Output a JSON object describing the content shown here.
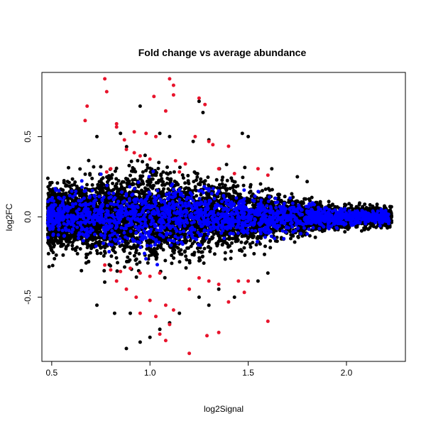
{
  "chart_data": {
    "type": "scatter",
    "title": "Fold change vs average abundance",
    "xlabel": "log2Signal",
    "ylabel": "log2FC",
    "xlim": [
      0.45,
      2.3
    ],
    "ylim": [
      -0.9,
      0.9
    ],
    "x_ticks": [
      0.5,
      1.0,
      1.5,
      2.0
    ],
    "x_tick_labels": [
      "0.5",
      "1.0",
      "1.5",
      "2.0"
    ],
    "y_ticks": [
      -0.5,
      0.0,
      0.5
    ],
    "y_tick_labels": [
      "-0.5",
      "0.0",
      "0.5"
    ],
    "grid": false,
    "legend": "none",
    "colors": {
      "black": "#000000",
      "blue": "#0000ff",
      "red": "#e8142c"
    },
    "series": [
      {
        "color": "black",
        "note_points": "dense cloud of thousands of points; outliers listed",
        "points": [
          [
            0.95,
            0.69
          ],
          [
            1.25,
            0.72
          ],
          [
            1.27,
            0.65
          ],
          [
            1.47,
            0.52
          ],
          [
            1.5,
            0.5
          ],
          [
            0.85,
            0.52
          ],
          [
            1.05,
            0.52
          ],
          [
            1.1,
            0.5
          ],
          [
            0.73,
            0.5
          ],
          [
            1.3,
            0.48
          ],
          [
            1.22,
            0.47
          ],
          [
            1.62,
            0.3
          ],
          [
            1.75,
            0.25
          ],
          [
            1.8,
            0.22
          ],
          [
            0.88,
            -0.82
          ],
          [
            0.95,
            -0.78
          ],
          [
            1.0,
            -0.75
          ],
          [
            1.05,
            -0.7
          ],
          [
            1.1,
            -0.66
          ],
          [
            1.15,
            -0.6
          ],
          [
            0.73,
            -0.55
          ],
          [
            0.82,
            -0.6
          ],
          [
            0.9,
            -0.6
          ],
          [
            1.3,
            -0.55
          ],
          [
            1.43,
            -0.5
          ],
          [
            1.6,
            -0.35
          ],
          [
            1.55,
            -0.4
          ],
          [
            1.35,
            -0.45
          ],
          [
            1.25,
            -0.5
          ]
        ]
      },
      {
        "color": "blue",
        "note_points": "dense band of points around log2FC 0 across the full signal range"
      },
      {
        "color": "red",
        "points": [
          [
            0.77,
            0.86
          ],
          [
            1.1,
            0.86
          ],
          [
            0.78,
            0.78
          ],
          [
            1.12,
            0.82
          ],
          [
            1.12,
            0.76
          ],
          [
            1.02,
            0.75
          ],
          [
            1.25,
            0.74
          ],
          [
            1.28,
            0.7
          ],
          [
            0.68,
            0.69
          ],
          [
            1.08,
            0.66
          ],
          [
            0.67,
            0.6
          ],
          [
            0.83,
            0.58
          ],
          [
            0.83,
            0.56
          ],
          [
            0.92,
            0.53
          ],
          [
            0.98,
            0.52
          ],
          [
            1.03,
            0.5
          ],
          [
            1.23,
            0.5
          ],
          [
            1.3,
            0.47
          ],
          [
            1.32,
            0.45
          ],
          [
            1.4,
            0.44
          ],
          [
            0.87,
            0.48
          ],
          [
            0.88,
            0.42
          ],
          [
            0.92,
            0.4
          ],
          [
            0.95,
            0.38
          ],
          [
            1.0,
            0.36
          ],
          [
            1.13,
            0.35
          ],
          [
            1.18,
            0.33
          ],
          [
            1.35,
            0.3
          ],
          [
            1.43,
            0.27
          ],
          [
            1.55,
            0.3
          ],
          [
            0.8,
            0.3
          ],
          [
            0.78,
            0.28
          ],
          [
            1.6,
            0.26
          ],
          [
            1.15,
            0.28
          ],
          [
            0.77,
            -0.3
          ],
          [
            0.8,
            -0.33
          ],
          [
            0.85,
            -0.34
          ],
          [
            0.9,
            -0.32
          ],
          [
            0.95,
            -0.35
          ],
          [
            1.0,
            -0.37
          ],
          [
            1.05,
            -0.35
          ],
          [
            0.83,
            -0.4
          ],
          [
            0.88,
            -0.45
          ],
          [
            0.93,
            -0.5
          ],
          [
            1.0,
            -0.52
          ],
          [
            1.08,
            -0.55
          ],
          [
            1.12,
            -0.58
          ],
          [
            0.95,
            -0.6
          ],
          [
            1.03,
            -0.62
          ],
          [
            1.1,
            -0.67
          ],
          [
            1.05,
            -0.73
          ],
          [
            1.08,
            -0.77
          ],
          [
            1.2,
            -0.85
          ],
          [
            1.29,
            -0.74
          ],
          [
            1.35,
            -0.72
          ],
          [
            1.6,
            -0.65
          ],
          [
            1.4,
            -0.53
          ],
          [
            1.48,
            -0.47
          ],
          [
            1.5,
            -0.4
          ],
          [
            1.45,
            -0.4
          ],
          [
            1.35,
            -0.42
          ],
          [
            1.3,
            -0.4
          ],
          [
            1.25,
            -0.38
          ],
          [
            1.2,
            -0.45
          ]
        ]
      }
    ]
  }
}
